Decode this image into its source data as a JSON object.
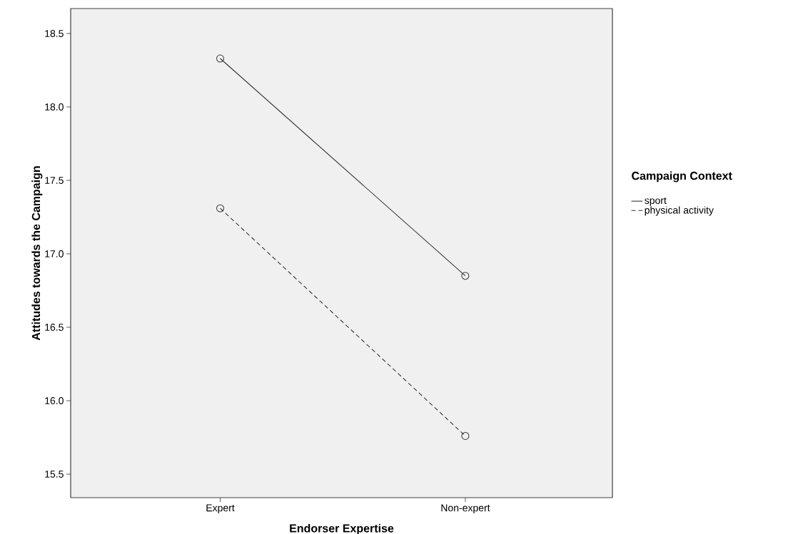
{
  "chart_data": {
    "type": "line",
    "xlabel": "Endorser Expertise",
    "ylabel": "Attitudes towards the Campaign",
    "legend_title": "Campaign Context",
    "categories": [
      "Expert",
      "Non-expert"
    ],
    "series": [
      {
        "name": "sport",
        "color": "#333333",
        "values": [
          18.33,
          16.85
        ],
        "line_style": "solid"
      },
      {
        "name": "physical activity",
        "color": "#333333",
        "values": [
          17.31,
          15.76
        ],
        "line_style": "dashed"
      }
    ],
    "ylim": [
      15.34,
      18.67
    ],
    "yticks": [
      {
        "value": 15.5,
        "label": "15.5"
      },
      {
        "value": 16.0,
        "label": "16.0"
      },
      {
        "value": 16.5,
        "label": "16.5"
      },
      {
        "value": 17.0,
        "label": "17.0"
      },
      {
        "value": 17.5,
        "label": "17.5"
      },
      {
        "value": 18.0,
        "label": "18.0"
      },
      {
        "value": 18.5,
        "label": "18.5"
      }
    ],
    "marker": "circle",
    "legend": "right",
    "grid": false
  }
}
